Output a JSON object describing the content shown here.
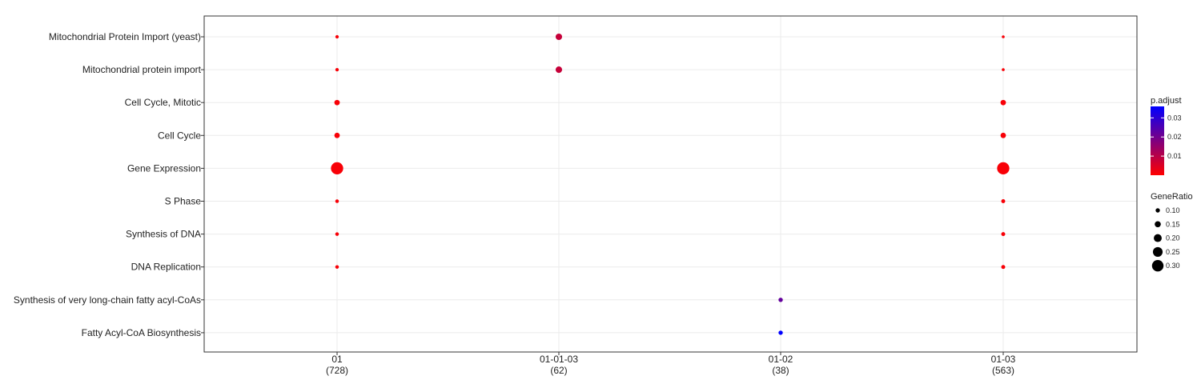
{
  "chart_data": {
    "type": "scatter",
    "x_categories": [
      {
        "label": "01",
        "count": "(728)"
      },
      {
        "label": "01-01-03",
        "count": "(62)"
      },
      {
        "label": "01-02",
        "count": "(38)"
      },
      {
        "label": "01-03",
        "count": "(563)"
      }
    ],
    "y_categories": [
      "Mitochondrial Protein Import (yeast)",
      "Mitochondrial protein import",
      "Cell Cycle, Mitotic",
      "Cell Cycle",
      "Gene Expression",
      "S Phase",
      "Synthesis of DNA",
      "DNA Replication",
      "Synthesis of very long-chain fatty acyl-CoAs",
      "Fatty Acyl-CoA Biosynthesis"
    ],
    "points": [
      {
        "x": "01",
        "y": "Mitochondrial Protein Import (yeast)",
        "gene_ratio": 0.075,
        "p_adjust": 0.001
      },
      {
        "x": "01",
        "y": "Mitochondrial protein import",
        "gene_ratio": 0.075,
        "p_adjust": 0.001
      },
      {
        "x": "01",
        "y": "Cell Cycle, Mitotic",
        "gene_ratio": 0.13,
        "p_adjust": 0.001
      },
      {
        "x": "01",
        "y": "Cell Cycle",
        "gene_ratio": 0.13,
        "p_adjust": 0.001
      },
      {
        "x": "01",
        "y": "Gene Expression",
        "gene_ratio": 0.32,
        "p_adjust": 0.001
      },
      {
        "x": "01",
        "y": "S Phase",
        "gene_ratio": 0.08,
        "p_adjust": 0.001
      },
      {
        "x": "01",
        "y": "Synthesis of DNA",
        "gene_ratio": 0.08,
        "p_adjust": 0.001
      },
      {
        "x": "01",
        "y": "DNA Replication",
        "gene_ratio": 0.08,
        "p_adjust": 0.001
      },
      {
        "x": "01-01-03",
        "y": "Mitochondrial Protein Import (yeast)",
        "gene_ratio": 0.16,
        "p_adjust": 0.008
      },
      {
        "x": "01-01-03",
        "y": "Mitochondrial protein import",
        "gene_ratio": 0.16,
        "p_adjust": 0.008
      },
      {
        "x": "01-02",
        "y": "Synthesis of very long-chain fatty acyl-CoAs",
        "gene_ratio": 0.1,
        "p_adjust": 0.022
      },
      {
        "x": "01-02",
        "y": "Fatty Acyl-CoA Biosynthesis",
        "gene_ratio": 0.1,
        "p_adjust": 0.036
      },
      {
        "x": "01-03",
        "y": "Mitochondrial Protein Import (yeast)",
        "gene_ratio": 0.06,
        "p_adjust": 0.001
      },
      {
        "x": "01-03",
        "y": "Mitochondrial protein import",
        "gene_ratio": 0.06,
        "p_adjust": 0.001
      },
      {
        "x": "01-03",
        "y": "Cell Cycle, Mitotic",
        "gene_ratio": 0.13,
        "p_adjust": 0.001
      },
      {
        "x": "01-03",
        "y": "Cell Cycle",
        "gene_ratio": 0.13,
        "p_adjust": 0.001
      },
      {
        "x": "01-03",
        "y": "Gene Expression",
        "gene_ratio": 0.32,
        "p_adjust": 0.001
      },
      {
        "x": "01-03",
        "y": "S Phase",
        "gene_ratio": 0.09,
        "p_adjust": 0.001
      },
      {
        "x": "01-03",
        "y": "Synthesis of DNA",
        "gene_ratio": 0.09,
        "p_adjust": 0.001
      },
      {
        "x": "01-03",
        "y": "DNA Replication",
        "gene_ratio": 0.09,
        "p_adjust": 0.001
      }
    ],
    "color_legend": {
      "title": "p.adjust",
      "ticks": [
        "0.01",
        "0.02",
        "0.03"
      ],
      "tick_values": [
        0.01,
        0.02,
        0.03
      ],
      "range": [
        0.0,
        0.036
      ],
      "low_color": "#ff0000",
      "high_color": "#0000ff"
    },
    "size_legend": {
      "title": "GeneRatio",
      "ticks": [
        "0.10",
        "0.15",
        "0.20",
        "0.25",
        "0.30"
      ],
      "tick_values": [
        0.1,
        0.15,
        0.2,
        0.25,
        0.3
      ]
    },
    "grid": true,
    "legend_position": "right"
  }
}
